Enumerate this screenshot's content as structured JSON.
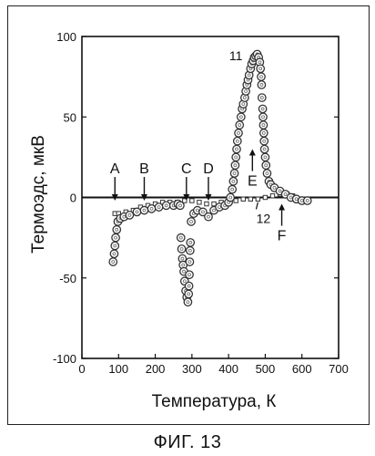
{
  "caption": "ФИГ. 13",
  "chart_data": {
    "type": "scatter",
    "title": "",
    "xlabel": "Температура, К",
    "ylabel": "Термоэдс, мкВ",
    "xlim": [
      0,
      700
    ],
    "ylim": [
      -100,
      100
    ],
    "xticks": [
      0,
      100,
      200,
      300,
      400,
      500,
      600,
      700
    ],
    "yticks": [
      -100,
      -50,
      0,
      50,
      100
    ],
    "grid": false,
    "zero_line": true,
    "series": [
      {
        "name": "11",
        "marker": "circle",
        "points": [
          [
            85,
            -40
          ],
          [
            88,
            -35
          ],
          [
            90,
            -30
          ],
          [
            92,
            -25
          ],
          [
            95,
            -20
          ],
          [
            98,
            -15
          ],
          [
            105,
            -13
          ],
          [
            115,
            -12
          ],
          [
            130,
            -11
          ],
          [
            150,
            -9
          ],
          [
            170,
            -8
          ],
          [
            190,
            -7
          ],
          [
            210,
            -6
          ],
          [
            230,
            -5
          ],
          [
            250,
            -5
          ],
          [
            262,
            -4
          ],
          [
            268,
            -5
          ],
          [
            270,
            -25
          ],
          [
            272,
            -32
          ],
          [
            274,
            -38
          ],
          [
            276,
            -42
          ],
          [
            278,
            -46
          ],
          [
            280,
            -52
          ],
          [
            283,
            -58
          ],
          [
            286,
            -62
          ],
          [
            289,
            -65
          ],
          [
            291,
            -60
          ],
          [
            292,
            -55
          ],
          [
            293,
            -48
          ],
          [
            294,
            -40
          ],
          [
            295,
            -33
          ],
          [
            296,
            -28
          ],
          [
            298,
            -15
          ],
          [
            305,
            -10
          ],
          [
            315,
            -8
          ],
          [
            330,
            -9
          ],
          [
            345,
            -12
          ],
          [
            360,
            -8
          ],
          [
            375,
            -6
          ],
          [
            390,
            -5
          ],
          [
            400,
            -3
          ],
          [
            405,
            0
          ],
          [
            410,
            5
          ],
          [
            413,
            10
          ],
          [
            416,
            15
          ],
          [
            418,
            20
          ],
          [
            420,
            25
          ],
          [
            422,
            30
          ],
          [
            424,
            35
          ],
          [
            427,
            40
          ],
          [
            430,
            45
          ],
          [
            434,
            50
          ],
          [
            437,
            55
          ],
          [
            440,
            58
          ],
          [
            444,
            62
          ],
          [
            447,
            66
          ],
          [
            450,
            70
          ],
          [
            453,
            73
          ],
          [
            456,
            76
          ],
          [
            460,
            80
          ],
          [
            463,
            83
          ],
          [
            467,
            85
          ],
          [
            470,
            87
          ],
          [
            474,
            88
          ],
          [
            478,
            89
          ],
          [
            482,
            87
          ],
          [
            485,
            84
          ],
          [
            487,
            80
          ],
          [
            489,
            75
          ],
          [
            490,
            70
          ],
          [
            491,
            62
          ],
          [
            493,
            55
          ],
          [
            494,
            50
          ],
          [
            495,
            45
          ],
          [
            496,
            40
          ],
          [
            497,
            35
          ],
          [
            498,
            30
          ],
          [
            500,
            25
          ],
          [
            502,
            20
          ],
          [
            505,
            15
          ],
          [
            510,
            10
          ],
          [
            515,
            8
          ],
          [
            525,
            6
          ],
          [
            540,
            4
          ],
          [
            555,
            2
          ],
          [
            570,
            0
          ],
          [
            585,
            -1
          ],
          [
            600,
            -2
          ],
          [
            615,
            -2
          ]
        ]
      },
      {
        "name": "12",
        "marker": "square",
        "points": [
          [
            90,
            -10
          ],
          [
            100,
            -10
          ],
          [
            120,
            -9
          ],
          [
            140,
            -8
          ],
          [
            160,
            -6
          ],
          [
            180,
            -5
          ],
          [
            200,
            -4
          ],
          [
            220,
            -3
          ],
          [
            240,
            -3
          ],
          [
            260,
            -3
          ],
          [
            280,
            -2
          ],
          [
            300,
            -2
          ],
          [
            320,
            -3
          ],
          [
            340,
            -4
          ],
          [
            360,
            -4
          ],
          [
            380,
            -3
          ],
          [
            400,
            -3
          ],
          [
            420,
            -2
          ],
          [
            440,
            -1
          ],
          [
            460,
            -1
          ],
          [
            480,
            -1
          ],
          [
            500,
            0
          ],
          [
            520,
            1
          ],
          [
            540,
            2
          ],
          [
            560,
            2
          ],
          [
            575,
            1
          ]
        ]
      }
    ],
    "annotations": [
      {
        "text": "A",
        "x": 90,
        "arrow": "down",
        "arrow_tip_y": -2
      },
      {
        "text": "B",
        "x": 170,
        "arrow": "down",
        "arrow_tip_y": -2
      },
      {
        "text": "C",
        "x": 285,
        "arrow": "down",
        "arrow_tip_y": -2
      },
      {
        "text": "D",
        "x": 345,
        "arrow": "down",
        "arrow_tip_y": -2
      },
      {
        "text": "E",
        "x": 465,
        "arrow": "up",
        "arrow_tip_y": 30
      },
      {
        "text": "F",
        "x": 545,
        "arrow": "up",
        "arrow_tip_y": -4
      },
      {
        "text": "11",
        "x": 420,
        "y": 88
      },
      {
        "text": "12",
        "x": 495,
        "y": -13,
        "leader_to": [
          480,
          -3
        ]
      }
    ]
  }
}
